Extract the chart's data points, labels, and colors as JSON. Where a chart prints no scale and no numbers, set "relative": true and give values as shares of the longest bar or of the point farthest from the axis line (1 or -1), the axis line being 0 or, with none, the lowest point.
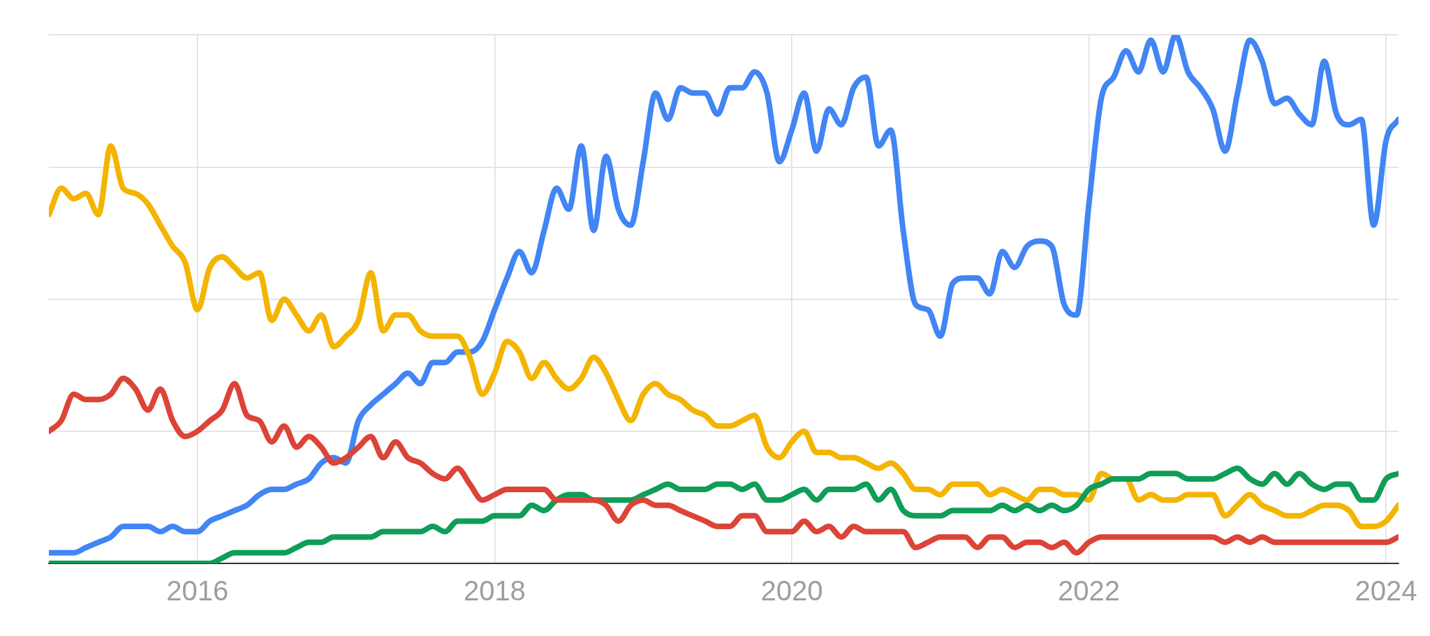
{
  "chart_data": {
    "type": "line",
    "relative": true,
    "grid": true,
    "x": [
      "2015-01",
      "2015-02",
      "2015-03",
      "2015-04",
      "2015-05",
      "2015-06",
      "2015-07",
      "2015-08",
      "2015-09",
      "2015-10",
      "2015-11",
      "2015-12",
      "2016-01",
      "2016-02",
      "2016-03",
      "2016-04",
      "2016-05",
      "2016-06",
      "2016-07",
      "2016-08",
      "2016-09",
      "2016-10",
      "2016-11",
      "2016-12",
      "2017-01",
      "2017-02",
      "2017-03",
      "2017-04",
      "2017-05",
      "2017-06",
      "2017-07",
      "2017-08",
      "2017-09",
      "2017-10",
      "2017-11",
      "2017-12",
      "2018-01",
      "2018-02",
      "2018-03",
      "2018-04",
      "2018-05",
      "2018-06",
      "2018-07",
      "2018-08",
      "2018-09",
      "2018-10",
      "2018-11",
      "2018-12",
      "2019-01",
      "2019-02",
      "2019-03",
      "2019-04",
      "2019-05",
      "2019-06",
      "2019-07",
      "2019-08",
      "2019-09",
      "2019-10",
      "2019-11",
      "2019-12",
      "2020-01",
      "2020-02",
      "2020-03",
      "2020-04",
      "2020-05",
      "2020-06",
      "2020-07",
      "2020-08",
      "2020-09",
      "2020-10",
      "2020-11",
      "2020-12",
      "2021-01",
      "2021-02",
      "2021-03",
      "2021-04",
      "2021-05",
      "2021-06",
      "2021-07",
      "2021-08",
      "2021-09",
      "2021-10",
      "2021-11",
      "2021-12",
      "2022-01",
      "2022-02",
      "2022-03",
      "2022-04",
      "2022-05",
      "2022-06",
      "2022-07",
      "2022-08",
      "2022-09",
      "2022-10",
      "2022-11",
      "2022-12",
      "2023-01",
      "2023-02",
      "2023-03",
      "2023-04",
      "2023-05",
      "2023-06",
      "2023-07",
      "2023-08",
      "2023-09",
      "2023-10",
      "2023-11",
      "2023-12",
      "2024-01",
      "2024-02"
    ],
    "xlim": [
      "2015-01",
      "2024-02"
    ],
    "xticks": [
      "2016",
      "2018",
      "2020",
      "2022",
      "2024"
    ],
    "series": [
      {
        "color": "#db4437",
        "values": [
          0.25,
          0.27,
          0.32,
          0.31,
          0.31,
          0.32,
          0.35,
          0.33,
          0.29,
          0.33,
          0.27,
          0.24,
          0.25,
          0.27,
          0.29,
          0.34,
          0.28,
          0.27,
          0.23,
          0.26,
          0.22,
          0.24,
          0.22,
          0.19,
          0.2,
          0.22,
          0.24,
          0.2,
          0.23,
          0.2,
          0.19,
          0.17,
          0.16,
          0.18,
          0.15,
          0.12,
          0.13,
          0.14,
          0.14,
          0.14,
          0.14,
          0.12,
          0.12,
          0.12,
          0.12,
          0.11,
          0.08,
          0.11,
          0.12,
          0.11,
          0.11,
          0.1,
          0.09,
          0.08,
          0.07,
          0.07,
          0.09,
          0.09,
          0.06,
          0.06,
          0.06,
          0.08,
          0.06,
          0.07,
          0.05,
          0.07,
          0.06,
          0.06,
          0.06,
          0.06,
          0.03,
          0.04,
          0.05,
          0.05,
          0.05,
          0.03,
          0.05,
          0.05,
          0.03,
          0.04,
          0.04,
          0.03,
          0.04,
          0.02,
          0.04,
          0.05,
          0.05,
          0.05,
          0.05,
          0.05,
          0.05,
          0.05,
          0.05,
          0.05,
          0.05,
          0.04,
          0.05,
          0.04,
          0.05,
          0.04,
          0.04,
          0.04,
          0.04,
          0.04,
          0.04,
          0.04,
          0.04,
          0.04,
          0.04,
          0.05
        ]
      },
      {
        "color": "#0f9d58",
        "values": [
          0,
          0,
          0,
          0,
          0,
          0,
          0,
          0,
          0,
          0,
          0,
          0,
          0,
          0,
          0.01,
          0.02,
          0.02,
          0.02,
          0.02,
          0.02,
          0.03,
          0.04,
          0.04,
          0.05,
          0.05,
          0.05,
          0.05,
          0.06,
          0.06,
          0.06,
          0.06,
          0.07,
          0.06,
          0.08,
          0.08,
          0.08,
          0.09,
          0.09,
          0.09,
          0.11,
          0.1,
          0.12,
          0.13,
          0.13,
          0.12,
          0.12,
          0.12,
          0.12,
          0.13,
          0.14,
          0.15,
          0.14,
          0.14,
          0.14,
          0.15,
          0.15,
          0.14,
          0.15,
          0.12,
          0.12,
          0.13,
          0.14,
          0.12,
          0.14,
          0.14,
          0.14,
          0.15,
          0.12,
          0.14,
          0.1,
          0.09,
          0.09,
          0.09,
          0.1,
          0.1,
          0.1,
          0.1,
          0.11,
          0.1,
          0.11,
          0.1,
          0.11,
          0.1,
          0.11,
          0.14,
          0.15,
          0.16,
          0.16,
          0.16,
          0.17,
          0.17,
          0.17,
          0.16,
          0.16,
          0.16,
          0.17,
          0.18,
          0.16,
          0.15,
          0.17,
          0.15,
          0.17,
          0.15,
          0.14,
          0.15,
          0.15,
          0.12,
          0.12,
          0.16,
          0.17
        ]
      },
      {
        "color": "#f4b400",
        "values": [
          0.66,
          0.71,
          0.69,
          0.7,
          0.66,
          0.79,
          0.71,
          0.7,
          0.68,
          0.64,
          0.6,
          0.57,
          0.48,
          0.56,
          0.58,
          0.56,
          0.54,
          0.55,
          0.46,
          0.5,
          0.47,
          0.44,
          0.47,
          0.41,
          0.43,
          0.46,
          0.55,
          0.44,
          0.47,
          0.47,
          0.44,
          0.43,
          0.43,
          0.43,
          0.39,
          0.32,
          0.36,
          0.42,
          0.4,
          0.35,
          0.38,
          0.35,
          0.33,
          0.35,
          0.39,
          0.36,
          0.31,
          0.27,
          0.32,
          0.34,
          0.32,
          0.31,
          0.29,
          0.28,
          0.26,
          0.26,
          0.27,
          0.28,
          0.22,
          0.2,
          0.23,
          0.25,
          0.21,
          0.21,
          0.2,
          0.2,
          0.19,
          0.18,
          0.19,
          0.17,
          0.14,
          0.14,
          0.13,
          0.15,
          0.15,
          0.15,
          0.13,
          0.14,
          0.13,
          0.12,
          0.14,
          0.14,
          0.13,
          0.13,
          0.12,
          0.17,
          0.16,
          0.16,
          0.12,
          0.13,
          0.12,
          0.12,
          0.13,
          0.13,
          0.13,
          0.09,
          0.11,
          0.13,
          0.11,
          0.1,
          0.09,
          0.09,
          0.1,
          0.11,
          0.11,
          0.1,
          0.07,
          0.07,
          0.08,
          0.11
        ]
      },
      {
        "color": "#4285f4",
        "values": [
          0.02,
          0.02,
          0.02,
          0.03,
          0.04,
          0.05,
          0.07,
          0.07,
          0.07,
          0.06,
          0.07,
          0.06,
          0.06,
          0.08,
          0.09,
          0.1,
          0.11,
          0.13,
          0.14,
          0.14,
          0.15,
          0.16,
          0.19,
          0.2,
          0.19,
          0.27,
          0.3,
          0.32,
          0.34,
          0.36,
          0.34,
          0.38,
          0.38,
          0.4,
          0.4,
          0.42,
          0.48,
          0.54,
          0.59,
          0.55,
          0.63,
          0.71,
          0.67,
          0.79,
          0.63,
          0.77,
          0.67,
          0.64,
          0.76,
          0.89,
          0.84,
          0.9,
          0.89,
          0.89,
          0.85,
          0.9,
          0.9,
          0.93,
          0.89,
          0.76,
          0.82,
          0.89,
          0.78,
          0.86,
          0.83,
          0.9,
          0.92,
          0.79,
          0.82,
          0.63,
          0.49,
          0.48,
          0.43,
          0.53,
          0.54,
          0.54,
          0.51,
          0.59,
          0.56,
          0.6,
          0.61,
          0.6,
          0.49,
          0.47,
          0.68,
          0.88,
          0.92,
          0.97,
          0.93,
          0.99,
          0.93,
          1,
          0.93,
          0.9,
          0.86,
          0.78,
          0.89,
          0.99,
          0.95,
          0.87,
          0.88,
          0.85,
          0.83,
          0.95,
          0.85,
          0.83,
          0.84,
          0.64,
          0.8,
          0.84
        ]
      }
    ]
  }
}
